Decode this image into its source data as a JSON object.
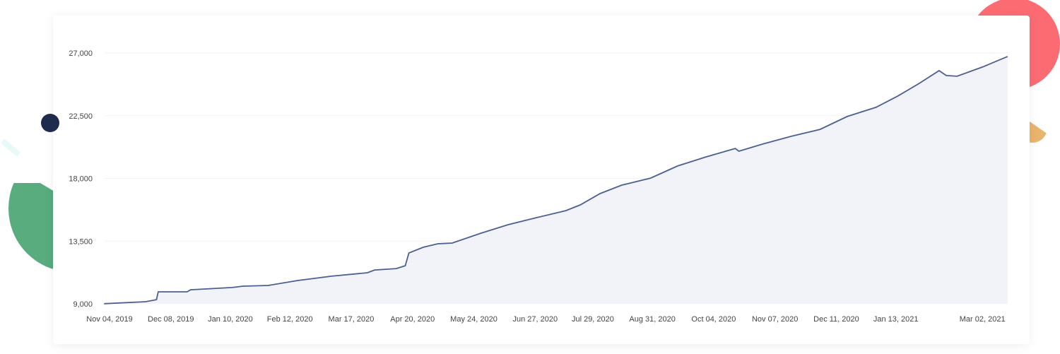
{
  "colors": {
    "line": "#4b5f91",
    "fill": "#f1f3f8",
    "grid": "#f2f2f2",
    "pink": "#fd6b72",
    "orange": "#e9b46c",
    "green": "#58ac7e",
    "navy": "#1f2b4d"
  },
  "chart_data": {
    "type": "area",
    "title": "",
    "xlabel": "",
    "ylabel": "",
    "ylim": [
      9000,
      27000
    ],
    "grid": true,
    "y_ticks": [
      "27,000",
      "22,500",
      "18,000",
      "13,500",
      "9,000"
    ],
    "y_tick_values": [
      27000,
      22500,
      18000,
      13500,
      9000
    ],
    "x_ticks": [
      "Nov 04, 2019",
      "Dec 08, 2019",
      "Jan 10, 2020",
      "Feb 12, 2020",
      "Mar 17, 2020",
      "Apr 20, 2020",
      "May 24, 2020",
      "Jun 27, 2020",
      "Jul 29, 2020",
      "Aug 31, 2020",
      "Oct 04, 2020",
      "Nov 07, 2020",
      "Dec 11, 2020",
      "Jan 13, 2021",
      "Mar 02, 2021"
    ],
    "x_tick_dates": [
      "2019-11-04",
      "2019-12-08",
      "2020-01-10",
      "2020-02-12",
      "2020-03-17",
      "2020-04-20",
      "2020-05-24",
      "2020-06-27",
      "2020-07-29",
      "2020-08-31",
      "2020-10-04",
      "2020-11-07",
      "2020-12-11",
      "2021-01-13",
      "2021-03-02"
    ],
    "series": [
      {
        "points": [
          [
            "2019-11-01",
            9010
          ],
          [
            "2019-11-24",
            9150
          ],
          [
            "2019-11-30",
            9300
          ],
          [
            "2019-12-01",
            9860
          ],
          [
            "2019-12-17",
            9860
          ],
          [
            "2019-12-19",
            10010
          ],
          [
            "2020-01-11",
            10170
          ],
          [
            "2020-01-17",
            10270
          ],
          [
            "2020-01-31",
            10320
          ],
          [
            "2020-02-16",
            10670
          ],
          [
            "2020-03-06",
            10980
          ],
          [
            "2020-03-26",
            11230
          ],
          [
            "2020-03-30",
            11430
          ],
          [
            "2020-04-11",
            11530
          ],
          [
            "2020-04-16",
            11740
          ],
          [
            "2020-04-18",
            12650
          ],
          [
            "2020-04-26",
            13060
          ],
          [
            "2020-05-04",
            13310
          ],
          [
            "2020-05-12",
            13360
          ],
          [
            "2020-05-28",
            14070
          ],
          [
            "2020-06-12",
            14680
          ],
          [
            "2020-06-28",
            15190
          ],
          [
            "2020-07-14",
            15690
          ],
          [
            "2020-07-22",
            16100
          ],
          [
            "2020-08-02",
            16910
          ],
          [
            "2020-08-14",
            17520
          ],
          [
            "2020-08-30",
            18020
          ],
          [
            "2020-09-14",
            18890
          ],
          [
            "2020-09-30",
            19550
          ],
          [
            "2020-10-16",
            20150
          ],
          [
            "2020-10-18",
            19950
          ],
          [
            "2020-10-31",
            20460
          ],
          [
            "2020-11-16",
            21020
          ],
          [
            "2020-12-02",
            21520
          ],
          [
            "2020-12-17",
            22440
          ],
          [
            "2021-01-02",
            23100
          ],
          [
            "2021-01-14",
            23900
          ],
          [
            "2021-01-26",
            24820
          ],
          [
            "2021-02-06",
            25730
          ],
          [
            "2021-02-10",
            25380
          ],
          [
            "2021-02-16",
            25330
          ],
          [
            "2021-03-02",
            25990
          ],
          [
            "2021-03-16",
            26750
          ]
        ]
      }
    ]
  }
}
